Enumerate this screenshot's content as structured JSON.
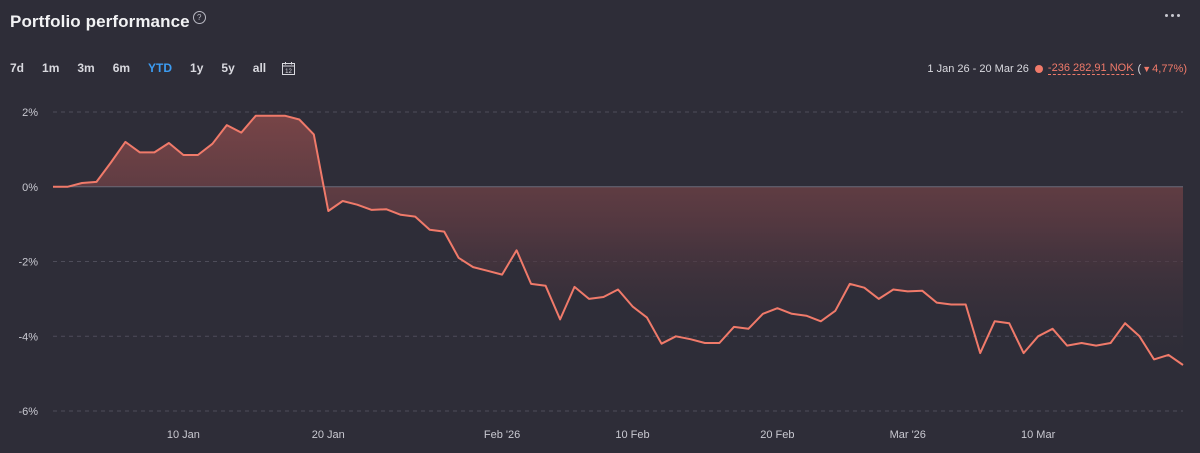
{
  "header": {
    "title": "Portfolio performance",
    "help_glyph": "?"
  },
  "ranges": [
    {
      "label": "7d",
      "active": false
    },
    {
      "label": "1m",
      "active": false
    },
    {
      "label": "3m",
      "active": false
    },
    {
      "label": "6m",
      "active": false
    },
    {
      "label": "YTD",
      "active": true
    },
    {
      "label": "1y",
      "active": false
    },
    {
      "label": "5y",
      "active": false
    },
    {
      "label": "all",
      "active": false
    }
  ],
  "calendar": {
    "icon": "calendar-icon",
    "day": "12"
  },
  "summary": {
    "period": "1 Jan 26 - 20 Mar 26",
    "amount": "-236 282,91 NOK",
    "open_paren": "(",
    "change": "4,77%)"
  },
  "colors": {
    "background": "#2e2d38",
    "line": "#f07a6a",
    "accent": "#3c9cf2"
  },
  "chart_data": {
    "type": "area",
    "x_axis": {
      "type": "date",
      "range": [
        "2026-01-01",
        "2026-03-20"
      ],
      "ticks": [
        "10 Jan",
        "20 Jan",
        "Feb '26",
        "10 Feb",
        "20 Feb",
        "Mar '26",
        "10 Mar"
      ],
      "tick_dates": [
        "2026-01-10",
        "2026-01-20",
        "2026-02-01",
        "2026-02-10",
        "2026-02-20",
        "2026-03-01",
        "2026-03-10"
      ]
    },
    "y_axis": {
      "ticks": [
        "2%",
        "0%",
        "-2%",
        "-4%",
        "-6%"
      ],
      "tick_values": [
        2,
        0,
        -2,
        -4,
        -6
      ],
      "range": [
        -6,
        2.6
      ]
    },
    "grid": "horizontal-dashed",
    "series": [
      {
        "points": [
          [
            "2026-01-01",
            0.0
          ],
          [
            "2026-01-02",
            0.0
          ],
          [
            "2026-01-03",
            0.1
          ],
          [
            "2026-01-04",
            0.13
          ],
          [
            "2026-01-05",
            0.65
          ],
          [
            "2026-01-06",
            1.2
          ],
          [
            "2026-01-07",
            0.92
          ],
          [
            "2026-01-08",
            0.92
          ],
          [
            "2026-01-09",
            1.17
          ],
          [
            "2026-01-10",
            0.85
          ],
          [
            "2026-01-11",
            0.85
          ],
          [
            "2026-01-12",
            1.15
          ],
          [
            "2026-01-13",
            1.65
          ],
          [
            "2026-01-14",
            1.45
          ],
          [
            "2026-01-15",
            1.9
          ],
          [
            "2026-01-16",
            1.9
          ],
          [
            "2026-01-17",
            1.9
          ],
          [
            "2026-01-18",
            1.8
          ],
          [
            "2026-01-19",
            1.4
          ],
          [
            "2026-01-20",
            -0.65
          ],
          [
            "2026-01-21",
            -0.38
          ],
          [
            "2026-01-22",
            -0.48
          ],
          [
            "2026-01-23",
            -0.62
          ],
          [
            "2026-01-24",
            -0.6
          ],
          [
            "2026-01-25",
            -0.75
          ],
          [
            "2026-01-26",
            -0.8
          ],
          [
            "2026-01-27",
            -1.15
          ],
          [
            "2026-01-28",
            -1.2
          ],
          [
            "2026-01-29",
            -1.9
          ],
          [
            "2026-01-30",
            -2.15
          ],
          [
            "2026-01-31",
            -2.25
          ],
          [
            "2026-02-01",
            -2.35
          ],
          [
            "2026-02-02",
            -1.7
          ],
          [
            "2026-02-03",
            -2.6
          ],
          [
            "2026-02-04",
            -2.65
          ],
          [
            "2026-02-05",
            -3.55
          ],
          [
            "2026-02-06",
            -2.68
          ],
          [
            "2026-02-07",
            -3.0
          ],
          [
            "2026-02-08",
            -2.95
          ],
          [
            "2026-02-09",
            -2.75
          ],
          [
            "2026-02-10",
            -3.2
          ],
          [
            "2026-02-11",
            -3.5
          ],
          [
            "2026-02-12",
            -4.2
          ],
          [
            "2026-02-13",
            -4.0
          ],
          [
            "2026-02-14",
            -4.08
          ],
          [
            "2026-02-15",
            -4.18
          ],
          [
            "2026-02-16",
            -4.18
          ],
          [
            "2026-02-17",
            -3.75
          ],
          [
            "2026-02-18",
            -3.8
          ],
          [
            "2026-02-19",
            -3.4
          ],
          [
            "2026-02-20",
            -3.25
          ],
          [
            "2026-02-21",
            -3.4
          ],
          [
            "2026-02-22",
            -3.45
          ],
          [
            "2026-02-23",
            -3.6
          ],
          [
            "2026-02-24",
            -3.32
          ],
          [
            "2026-02-25",
            -2.6
          ],
          [
            "2026-02-26",
            -2.7
          ],
          [
            "2026-02-27",
            -3.0
          ],
          [
            "2026-02-28",
            -2.75
          ],
          [
            "2026-03-01",
            -2.8
          ],
          [
            "2026-03-02",
            -2.78
          ],
          [
            "2026-03-03",
            -3.1
          ],
          [
            "2026-03-04",
            -3.15
          ],
          [
            "2026-03-05",
            -3.15
          ],
          [
            "2026-03-06",
            -4.45
          ],
          [
            "2026-03-07",
            -3.6
          ],
          [
            "2026-03-08",
            -3.65
          ],
          [
            "2026-03-09",
            -4.45
          ],
          [
            "2026-03-10",
            -4.0
          ],
          [
            "2026-03-11",
            -3.8
          ],
          [
            "2026-03-12",
            -4.25
          ],
          [
            "2026-03-13",
            -4.18
          ],
          [
            "2026-03-14",
            -4.25
          ],
          [
            "2026-03-15",
            -4.18
          ],
          [
            "2026-03-16",
            -3.65
          ],
          [
            "2026-03-17",
            -4.0
          ],
          [
            "2026-03-18",
            -4.62
          ],
          [
            "2026-03-19",
            -4.5
          ],
          [
            "2026-03-20",
            -4.77
          ]
        ]
      }
    ]
  }
}
